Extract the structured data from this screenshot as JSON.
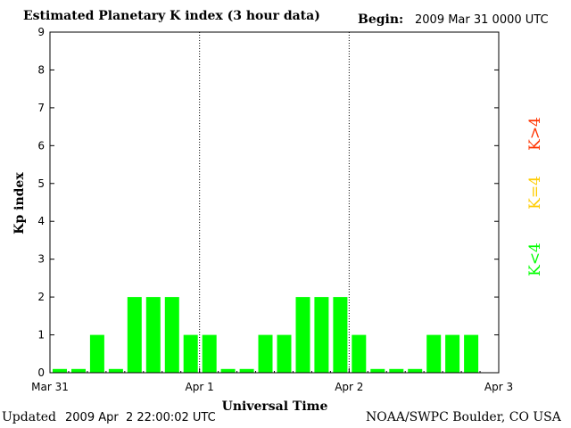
{
  "header": {
    "title": "Estimated Planetary K index (3 hour data)",
    "begin_label": "Begin:",
    "begin_value": "2009 Mar 31 0000 UTC"
  },
  "footer": {
    "updated_label": "Updated",
    "updated_value": "2009 Apr  2 22:00:02 UTC",
    "credit": "NOAA/SWPC Boulder, CO USA"
  },
  "legend": {
    "high": "K>4",
    "equal": "K=4",
    "low": "K<4"
  },
  "colors": {
    "high": "#ff3300",
    "equal": "#ffcc00",
    "low": "#00ff00"
  },
  "chart_data": {
    "type": "bar",
    "ylabel": "Kp index",
    "xlabel": "Universal Time",
    "ylim": [
      0,
      9
    ],
    "yticks": [
      "0",
      "1",
      "2",
      "3",
      "4",
      "5",
      "6",
      "7",
      "8",
      "9"
    ],
    "xticks": [
      "Mar 31",
      "Apr 1",
      "Apr 2",
      "Apr 3"
    ],
    "bars_per_day": 8,
    "days": 3,
    "values": [
      0.1,
      0.1,
      1,
      0.1,
      2,
      2,
      2,
      1,
      1,
      0.1,
      0.1,
      1,
      1,
      2,
      2,
      2,
      1,
      0.1,
      0.1,
      0.1,
      1,
      1,
      1
    ],
    "bar_color": "#00ff00"
  }
}
